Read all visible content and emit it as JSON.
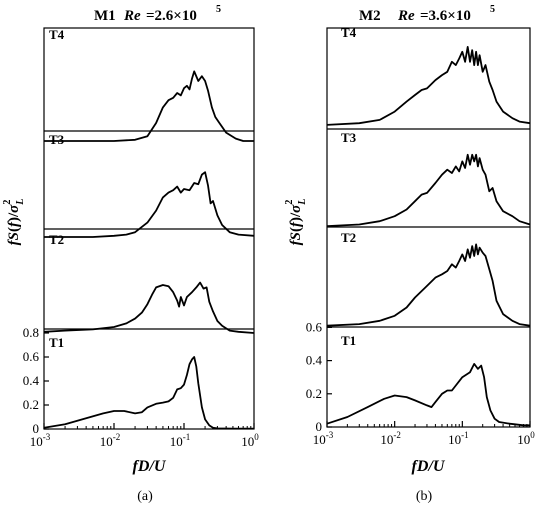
{
  "chart_data": [
    {
      "type": "line",
      "label": "(a)",
      "title_model": "M1",
      "title_param": "Re",
      "title_value": "=2.6×10",
      "title_exp": "5",
      "xlabel": "fD/U",
      "ylabel": "fS(f)/σ_L^2",
      "x_scale": "log",
      "xlim": [
        0.001,
        1
      ],
      "x_ticks": [
        {
          "base": "10",
          "exp": "-3",
          "value": 0.001
        },
        {
          "base": "10",
          "exp": "-2",
          "value": 0.01
        },
        {
          "base": "10",
          "exp": "-1",
          "value": 0.1
        },
        {
          "base": "10",
          "exp": "0",
          "value": 1
        }
      ],
      "y_ticks": [
        {
          "label": "0",
          "value": 0
        },
        {
          "label": "0.2",
          "value": 0.2
        },
        {
          "label": "0.4",
          "value": 0.4
        },
        {
          "label": "0.6",
          "value": 0.6
        },
        {
          "label": "0.8",
          "value": 0.8
        }
      ],
      "series": [
        {
          "name": "T1",
          "points": [
            [
              0.001,
              0.01
            ],
            [
              0.002,
              0.04
            ],
            [
              0.004,
              0.09
            ],
            [
              0.007,
              0.13
            ],
            [
              0.01,
              0.15
            ],
            [
              0.014,
              0.15
            ],
            [
              0.02,
              0.13
            ],
            [
              0.025,
              0.14
            ],
            [
              0.03,
              0.18
            ],
            [
              0.04,
              0.21
            ],
            [
              0.05,
              0.22
            ],
            [
              0.06,
              0.23
            ],
            [
              0.07,
              0.26
            ],
            [
              0.08,
              0.33
            ],
            [
              0.09,
              0.34
            ],
            [
              0.1,
              0.37
            ],
            [
              0.11,
              0.45
            ],
            [
              0.12,
              0.54
            ],
            [
              0.13,
              0.58
            ],
            [
              0.14,
              0.6
            ],
            [
              0.15,
              0.52
            ],
            [
              0.16,
              0.38
            ],
            [
              0.18,
              0.18
            ],
            [
              0.2,
              0.08
            ],
            [
              0.23,
              0.03
            ],
            [
              0.26,
              0.01
            ],
            [
              0.3,
              0.005
            ],
            [
              0.5,
              0.003
            ],
            [
              1,
              0.003
            ]
          ]
        },
        {
          "name": "T2",
          "points": [
            [
              0.001,
              0.81
            ],
            [
              0.002,
              0.82
            ],
            [
              0.005,
              0.83
            ],
            [
              0.01,
              0.85
            ],
            [
              0.015,
              0.88
            ],
            [
              0.02,
              0.92
            ],
            [
              0.025,
              0.97
            ],
            [
              0.03,
              1.04
            ],
            [
              0.035,
              1.12
            ],
            [
              0.04,
              1.18
            ],
            [
              0.05,
              1.2
            ],
            [
              0.06,
              1.19
            ],
            [
              0.07,
              1.14
            ],
            [
              0.08,
              1.07
            ],
            [
              0.085,
              1.02
            ],
            [
              0.09,
              1.1
            ],
            [
              0.1,
              1.03
            ],
            [
              0.11,
              1.1
            ],
            [
              0.13,
              1.14
            ],
            [
              0.15,
              1.18
            ],
            [
              0.17,
              1.22
            ],
            [
              0.19,
              1.17
            ],
            [
              0.21,
              1.18
            ],
            [
              0.23,
              1.06
            ],
            [
              0.26,
              0.98
            ],
            [
              0.3,
              0.9
            ],
            [
              0.35,
              0.86
            ],
            [
              0.45,
              0.82
            ],
            [
              0.6,
              0.81
            ],
            [
              1,
              0.8
            ]
          ]
        },
        {
          "name": "T3",
          "points": [
            [
              0.001,
              1.6
            ],
            [
              0.005,
              1.6
            ],
            [
              0.01,
              1.61
            ],
            [
              0.015,
              1.62
            ],
            [
              0.02,
              1.64
            ],
            [
              0.03,
              1.72
            ],
            [
              0.04,
              1.82
            ],
            [
              0.05,
              1.93
            ],
            [
              0.06,
              1.97
            ],
            [
              0.07,
              1.99
            ],
            [
              0.08,
              2.02
            ],
            [
              0.09,
              1.97
            ],
            [
              0.1,
              2.0
            ],
            [
              0.12,
              1.99
            ],
            [
              0.14,
              2.05
            ],
            [
              0.16,
              2.04
            ],
            [
              0.18,
              2.12
            ],
            [
              0.2,
              2.14
            ],
            [
              0.22,
              2.03
            ],
            [
              0.24,
              1.88
            ],
            [
              0.26,
              1.9
            ],
            [
              0.3,
              1.78
            ],
            [
              0.35,
              1.7
            ],
            [
              0.45,
              1.64
            ],
            [
              0.6,
              1.62
            ],
            [
              1,
              1.61
            ]
          ]
        },
        {
          "name": "T4",
          "points": [
            [
              0.001,
              2.4
            ],
            [
              0.01,
              2.4
            ],
            [
              0.02,
              2.41
            ],
            [
              0.03,
              2.44
            ],
            [
              0.04,
              2.55
            ],
            [
              0.05,
              2.68
            ],
            [
              0.06,
              2.74
            ],
            [
              0.07,
              2.76
            ],
            [
              0.08,
              2.8
            ],
            [
              0.09,
              2.78
            ],
            [
              0.1,
              2.84
            ],
            [
              0.11,
              2.86
            ],
            [
              0.12,
              2.83
            ],
            [
              0.13,
              2.92
            ],
            [
              0.14,
              2.98
            ],
            [
              0.16,
              2.9
            ],
            [
              0.18,
              2.94
            ],
            [
              0.2,
              2.9
            ],
            [
              0.22,
              2.82
            ],
            [
              0.25,
              2.68
            ],
            [
              0.28,
              2.6
            ],
            [
              0.32,
              2.55
            ],
            [
              0.4,
              2.47
            ],
            [
              0.55,
              2.42
            ],
            [
              0.7,
              2.4
            ],
            [
              1,
              2.4
            ]
          ]
        }
      ]
    },
    {
      "type": "line",
      "label": "(b)",
      "title_model": "M2",
      "title_param": "Re",
      "title_value": "=3.6×10",
      "title_exp": "5",
      "xlabel": "fD/U",
      "ylabel": "fS(f)/σ_L^2",
      "x_scale": "log",
      "xlim": [
        0.001,
        1
      ],
      "x_ticks": [
        {
          "base": "10",
          "exp": "-3",
          "value": 0.001
        },
        {
          "base": "10",
          "exp": "-2",
          "value": 0.01
        },
        {
          "base": "10",
          "exp": "-1",
          "value": 0.1
        },
        {
          "base": "10",
          "exp": "0",
          "value": 1
        }
      ],
      "y_ticks": [
        {
          "label": "0",
          "value": 0
        },
        {
          "label": "0.2",
          "value": 0.2
        },
        {
          "label": "0.4",
          "value": 0.4
        },
        {
          "label": "0.6",
          "value": 0.6
        }
      ],
      "series": [
        {
          "name": "T1",
          "points": [
            [
              0.001,
              0.02
            ],
            [
              0.002,
              0.06
            ],
            [
              0.004,
              0.12
            ],
            [
              0.007,
              0.17
            ],
            [
              0.01,
              0.19
            ],
            [
              0.015,
              0.18
            ],
            [
              0.02,
              0.16
            ],
            [
              0.03,
              0.13
            ],
            [
              0.035,
              0.12
            ],
            [
              0.04,
              0.15
            ],
            [
              0.05,
              0.2
            ],
            [
              0.06,
              0.22
            ],
            [
              0.07,
              0.22
            ],
            [
              0.08,
              0.25
            ],
            [
              0.1,
              0.3
            ],
            [
              0.13,
              0.33
            ],
            [
              0.15,
              0.38
            ],
            [
              0.17,
              0.35
            ],
            [
              0.19,
              0.37
            ],
            [
              0.21,
              0.3
            ],
            [
              0.23,
              0.18
            ],
            [
              0.26,
              0.1
            ],
            [
              0.3,
              0.05
            ],
            [
              0.35,
              0.03
            ],
            [
              0.5,
              0.02
            ],
            [
              0.8,
              0.01
            ],
            [
              1,
              0.01
            ]
          ]
        },
        {
          "name": "T2",
          "points": [
            [
              0.001,
              0.61
            ],
            [
              0.003,
              0.62
            ],
            [
              0.006,
              0.64
            ],
            [
              0.01,
              0.67
            ],
            [
              0.015,
              0.72
            ],
            [
              0.02,
              0.78
            ],
            [
              0.03,
              0.85
            ],
            [
              0.04,
              0.9
            ],
            [
              0.05,
              0.92
            ],
            [
              0.06,
              0.94
            ],
            [
              0.07,
              0.98
            ],
            [
              0.08,
              0.96
            ],
            [
              0.09,
              1.0
            ],
            [
              0.1,
              1.04
            ],
            [
              0.11,
              1.0
            ],
            [
              0.12,
              1.07
            ],
            [
              0.13,
              1.02
            ],
            [
              0.14,
              1.09
            ],
            [
              0.15,
              1.03
            ],
            [
              0.16,
              1.1
            ],
            [
              0.17,
              1.04
            ],
            [
              0.18,
              1.08
            ],
            [
              0.2,
              1.05
            ],
            [
              0.22,
              1.03
            ],
            [
              0.25,
              0.95
            ],
            [
              0.28,
              0.88
            ],
            [
              0.32,
              0.76
            ],
            [
              0.4,
              0.68
            ],
            [
              0.55,
              0.64
            ],
            [
              0.7,
              0.62
            ],
            [
              1,
              0.61
            ]
          ]
        },
        {
          "name": "T3",
          "points": [
            [
              0.001,
              1.21
            ],
            [
              0.003,
              1.22
            ],
            [
              0.006,
              1.24
            ],
            [
              0.01,
              1.27
            ],
            [
              0.015,
              1.31
            ],
            [
              0.02,
              1.36
            ],
            [
              0.025,
              1.4
            ],
            [
              0.03,
              1.41
            ],
            [
              0.04,
              1.47
            ],
            [
              0.05,
              1.52
            ],
            [
              0.06,
              1.55
            ],
            [
              0.07,
              1.53
            ],
            [
              0.08,
              1.57
            ],
            [
              0.09,
              1.54
            ],
            [
              0.1,
              1.6
            ],
            [
              0.11,
              1.56
            ],
            [
              0.12,
              1.64
            ],
            [
              0.13,
              1.58
            ],
            [
              0.14,
              1.64
            ],
            [
              0.15,
              1.6
            ],
            [
              0.16,
              1.64
            ],
            [
              0.17,
              1.57
            ],
            [
              0.18,
              1.62
            ],
            [
              0.2,
              1.55
            ],
            [
              0.22,
              1.52
            ],
            [
              0.25,
              1.42
            ],
            [
              0.28,
              1.44
            ],
            [
              0.32,
              1.36
            ],
            [
              0.4,
              1.3
            ],
            [
              0.55,
              1.27
            ],
            [
              0.7,
              1.24
            ],
            [
              1,
              1.22
            ]
          ]
        },
        {
          "name": "T4",
          "points": [
            [
              0.001,
              1.82
            ],
            [
              0.003,
              1.83
            ],
            [
              0.006,
              1.85
            ],
            [
              0.01,
              1.9
            ],
            [
              0.015,
              1.96
            ],
            [
              0.02,
              2.0
            ],
            [
              0.025,
              2.03
            ],
            [
              0.03,
              2.04
            ],
            [
              0.04,
              2.09
            ],
            [
              0.05,
              2.12
            ],
            [
              0.06,
              2.14
            ],
            [
              0.07,
              2.2
            ],
            [
              0.08,
              2.18
            ],
            [
              0.09,
              2.22
            ],
            [
              0.1,
              2.26
            ],
            [
              0.11,
              2.2
            ],
            [
              0.12,
              2.29
            ],
            [
              0.13,
              2.2
            ],
            [
              0.14,
              2.27
            ],
            [
              0.15,
              2.18
            ],
            [
              0.16,
              2.26
            ],
            [
              0.17,
              2.18
            ],
            [
              0.18,
              2.24
            ],
            [
              0.2,
              2.14
            ],
            [
              0.22,
              2.18
            ],
            [
              0.25,
              2.08
            ],
            [
              0.28,
              2.03
            ],
            [
              0.32,
              1.96
            ],
            [
              0.4,
              1.9
            ],
            [
              0.55,
              1.86
            ],
            [
              0.7,
              1.84
            ],
            [
              1,
              1.83
            ]
          ]
        }
      ]
    }
  ]
}
